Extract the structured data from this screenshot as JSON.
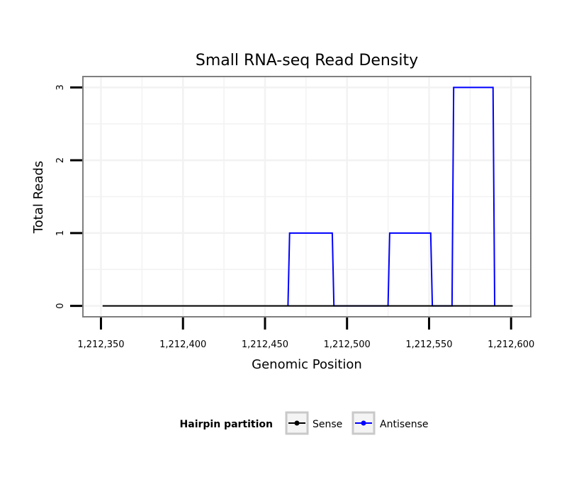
{
  "chart_data": {
    "type": "line",
    "title": "Small RNA-seq Read Density",
    "xlabel": "Genomic Position",
    "ylabel": "Total Reads",
    "xlim": [
      1212339,
      1212612
    ],
    "ylim": [
      -0.15,
      3.15
    ],
    "x_ticks": [
      1212350,
      1212400,
      1212450,
      1212500,
      1212550,
      1212600
    ],
    "x_tick_labels": [
      "1,212,350",
      "1,212,400",
      "1,212,450",
      "1,212,500",
      "1,212,550",
      "1,212,600"
    ],
    "y_ticks": [
      0,
      1,
      2,
      3
    ],
    "y_tick_labels": [
      "0",
      "1",
      "2",
      "3"
    ],
    "grid": true,
    "legend": {
      "title": "Hairpin partition",
      "position": "bottom",
      "entries": [
        "Sense",
        "Antisense"
      ]
    },
    "series": [
      {
        "name": "Sense",
        "color": "#000000",
        "x": [
          1212351,
          1212601
        ],
        "y": [
          0,
          0
        ]
      },
      {
        "name": "Antisense",
        "color": "#0000ff",
        "x": [
          1212464,
          1212465,
          1212491,
          1212492,
          1212525,
          1212526,
          1212551,
          1212552,
          1212564,
          1212565,
          1212589,
          1212590
        ],
        "y": [
          0,
          1,
          1,
          0,
          0,
          1,
          1,
          0,
          0,
          3,
          3,
          0
        ]
      }
    ]
  }
}
